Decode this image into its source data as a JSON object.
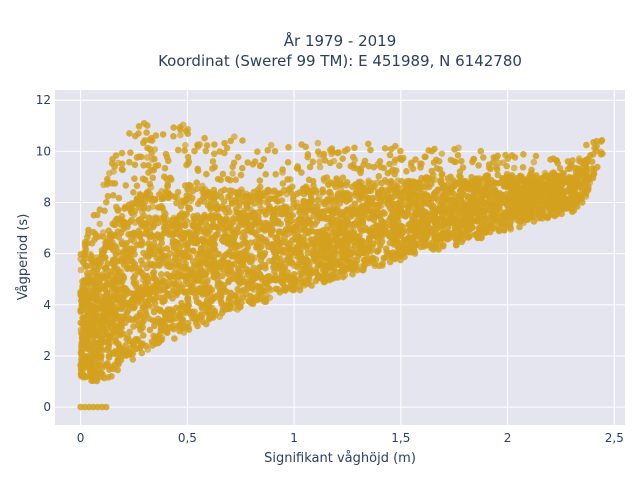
{
  "chart_data": {
    "type": "scatter",
    "title_line1": "År 1979 - 2019",
    "title_line2": "Koordinat (Sweref 99 TM): E 451989, N 6142780",
    "xlabel": "Signifikant våghöjd (m)",
    "ylabel": "Vågperiod (s)",
    "xlim": [
      -0.12,
      2.55
    ],
    "ylim": [
      -0.7,
      12.4
    ],
    "x_ticks": [
      0,
      0.5,
      1,
      1.5,
      2,
      2.5
    ],
    "x_tick_labels": [
      "0",
      "0,5",
      "1",
      "1,5",
      "2",
      "2,5"
    ],
    "y_ticks": [
      0,
      2,
      4,
      6,
      8,
      10,
      12
    ],
    "y_tick_labels": [
      "0",
      "2",
      "4",
      "6",
      "8",
      "10",
      "12"
    ],
    "grid": true,
    "marker_color": "#d4a11e",
    "plot_background": "#e5e5f0",
    "point_count": 3200,
    "envelope": {
      "x": [
        0.0,
        0.05,
        0.1,
        0.15,
        0.2,
        0.3,
        0.4,
        0.5,
        0.6,
        0.7,
        0.8,
        0.9,
        1.0,
        1.2,
        1.4,
        1.6,
        1.8,
        2.0,
        2.2,
        2.3,
        2.35,
        2.45
      ],
      "lower": [
        1.2,
        1.0,
        1.0,
        1.2,
        1.6,
        2.1,
        2.5,
        2.9,
        3.2,
        3.6,
        3.9,
        4.2,
        4.5,
        5.0,
        5.5,
        6.0,
        6.4,
        6.9,
        7.4,
        7.6,
        7.8,
        10.0
      ],
      "upper": [
        6.0,
        7.5,
        8.8,
        9.8,
        10.5,
        11.3,
        11.0,
        11.2,
        10.8,
        10.6,
        10.5,
        10.4,
        10.3,
        10.4,
        10.3,
        10.2,
        10.2,
        10.0,
        9.8,
        9.7,
        10.2,
        10.5
      ]
    },
    "zero_points_x": [
      0.0,
      0.02,
      0.04,
      0.06,
      0.08,
      0.1,
      0.12
    ]
  }
}
